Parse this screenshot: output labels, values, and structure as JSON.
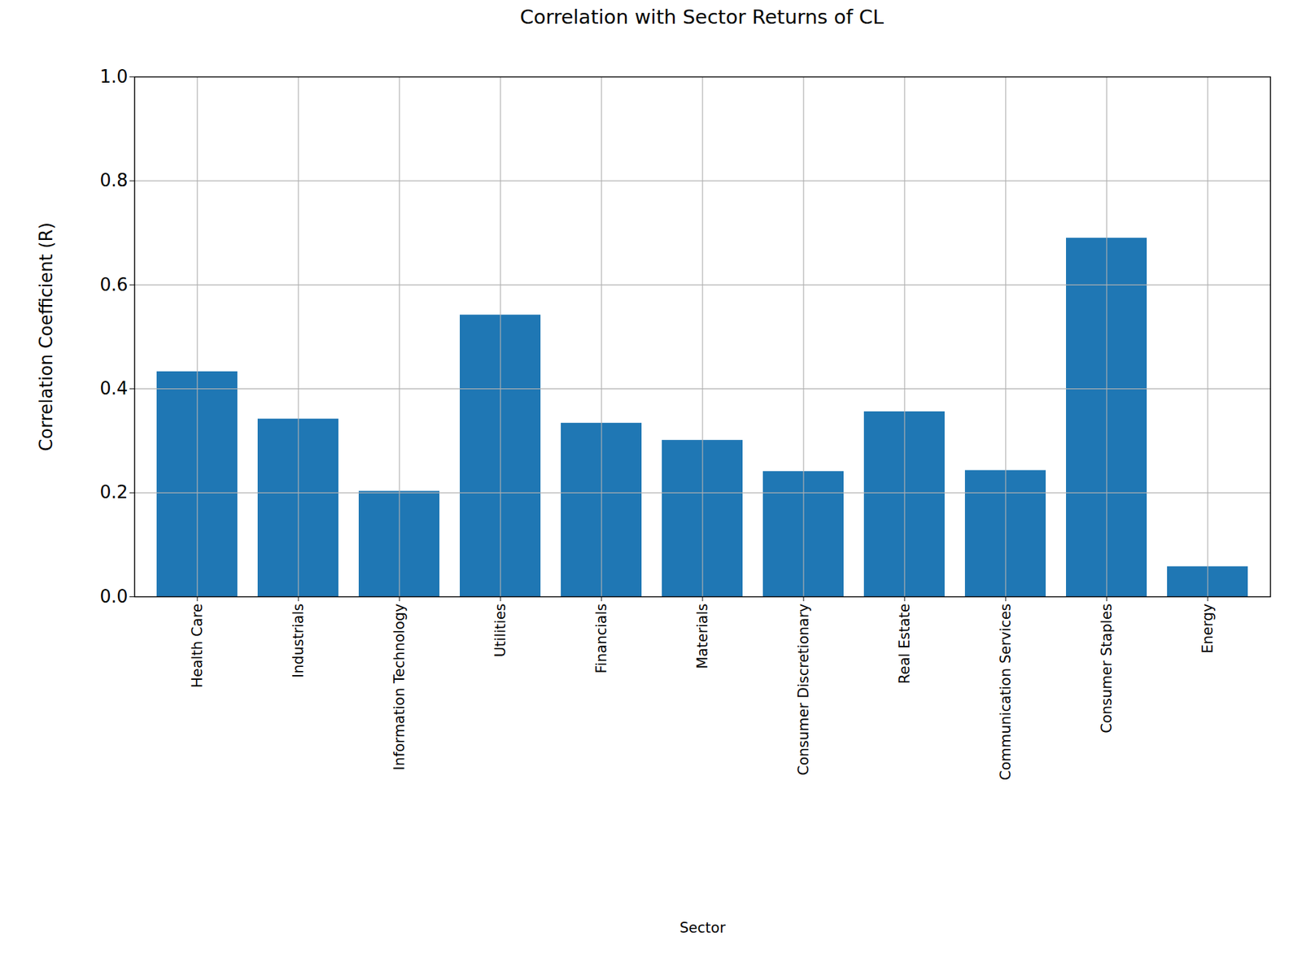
{
  "chart_data": {
    "type": "bar",
    "title": "Correlation with Sector Returns of CL",
    "xlabel": "Sector",
    "ylabel": "Correlation Coefficient (R)",
    "categories": [
      "Health Care",
      "Industrials",
      "Information Technology",
      "Utilities",
      "Financials",
      "Materials",
      "Consumer Discretionary",
      "Real Estate",
      "Communication Services",
      "Consumer Staples",
      "Energy"
    ],
    "values": [
      0.433,
      0.342,
      0.203,
      0.542,
      0.334,
      0.301,
      0.241,
      0.356,
      0.243,
      0.69,
      0.058
    ],
    "color": "#1f77b4",
    "ylim": [
      0,
      1
    ],
    "yticks": [
      {
        "value": 0,
        "label": "0.0"
      },
      0.2,
      0.4,
      0.6,
      0.8,
      {
        "value": 1,
        "label": "1.0"
      }
    ],
    "grid": true
  }
}
